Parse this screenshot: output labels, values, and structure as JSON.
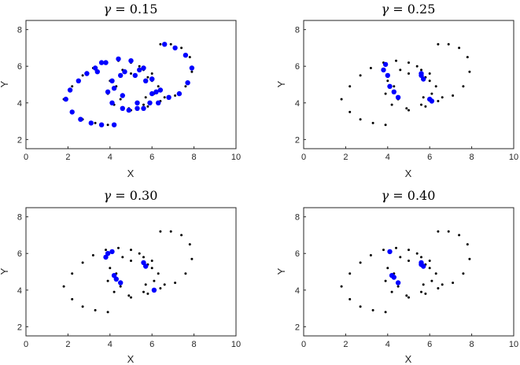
{
  "chart_data": [
    {
      "type": "scatter",
      "title": "γ = 0.15",
      "title_symbol": "γ",
      "title_value": "= 0.15",
      "xlabel": "X",
      "ylabel": "Y",
      "xlim": [
        0,
        10
      ],
      "ylim": [
        1.5,
        8.5
      ],
      "xticks": [
        "0",
        "2",
        "4",
        "6",
        "8",
        "10"
      ],
      "yticks": [
        "2",
        "4",
        "6",
        "8"
      ],
      "grid": false,
      "series": [
        {
          "role": "attractor",
          "color": "#000000",
          "points": [
            [
              1.8,
              4.2
            ],
            [
              2.2,
              4.9
            ],
            [
              2.7,
              5.5
            ],
            [
              3.2,
              5.9
            ],
            [
              3.8,
              6.2
            ],
            [
              4.4,
              6.3
            ],
            [
              5.0,
              6.2
            ],
            [
              5.6,
              5.8
            ],
            [
              6.0,
              5.2
            ],
            [
              6.1,
              4.5
            ],
            [
              5.6,
              3.9
            ],
            [
              4.9,
              3.7
            ],
            [
              4.2,
              3.9
            ],
            [
              3.9,
              4.5
            ],
            [
              4.0,
              5.2
            ],
            [
              4.6,
              5.8
            ],
            [
              5.4,
              6.0
            ],
            [
              6.0,
              5.6
            ],
            [
              6.3,
              4.9
            ],
            [
              6.6,
              4.3
            ],
            [
              7.1,
              4.4
            ],
            [
              7.6,
              4.9
            ],
            [
              7.9,
              5.7
            ],
            [
              7.8,
              6.5
            ],
            [
              7.4,
              7.0
            ],
            [
              6.9,
              7.2
            ],
            [
              6.4,
              7.2
            ],
            [
              2.2,
              3.5
            ],
            [
              2.7,
              3.1
            ],
            [
              3.3,
              2.9
            ],
            [
              3.9,
              2.8
            ],
            [
              5.0,
              3.6
            ],
            [
              5.8,
              3.8
            ],
            [
              6.4,
              4.1
            ],
            [
              5.7,
              4.3
            ],
            [
              4.5,
              4.2
            ],
            [
              4.3,
              4.9
            ],
            [
              5.0,
              5.6
            ],
            [
              5.8,
              5.4
            ]
          ]
        },
        {
          "role": "highlighted",
          "color": "#0000ff",
          "points": [
            [
              1.9,
              4.2
            ],
            [
              2.1,
              4.7
            ],
            [
              2.5,
              5.2
            ],
            [
              2.9,
              5.6
            ],
            [
              3.3,
              5.9
            ],
            [
              3.8,
              6.2
            ],
            [
              4.4,
              6.4
            ],
            [
              5.0,
              6.3
            ],
            [
              5.6,
              5.9
            ],
            [
              6.0,
              5.3
            ],
            [
              6.2,
              4.6
            ],
            [
              5.9,
              4.0
            ],
            [
              5.3,
              3.7
            ],
            [
              4.6,
              3.7
            ],
            [
              4.1,
              4.0
            ],
            [
              3.9,
              4.6
            ],
            [
              4.1,
              5.2
            ],
            [
              4.7,
              5.7
            ],
            [
              5.4,
              5.8
            ],
            [
              6.0,
              5.3
            ],
            [
              6.4,
              4.7
            ],
            [
              6.8,
              4.3
            ],
            [
              7.3,
              4.5
            ],
            [
              7.7,
              5.1
            ],
            [
              7.9,
              5.9
            ],
            [
              7.6,
              6.6
            ],
            [
              7.1,
              7.0
            ],
            [
              6.6,
              7.2
            ],
            [
              2.2,
              3.5
            ],
            [
              2.6,
              3.1
            ],
            [
              3.1,
              2.9
            ],
            [
              3.6,
              2.8
            ],
            [
              4.2,
              2.8
            ],
            [
              4.9,
              3.6
            ],
            [
              5.6,
              3.7
            ],
            [
              6.3,
              4.0
            ],
            [
              6.0,
              4.5
            ],
            [
              5.7,
              5.2
            ],
            [
              5.2,
              5.5
            ],
            [
              4.5,
              5.5
            ],
            [
              4.2,
              4.8
            ],
            [
              4.6,
              4.4
            ],
            [
              5.3,
              4.0
            ],
            [
              3.6,
              6.2
            ],
            [
              3.4,
              5.7
            ]
          ]
        }
      ]
    },
    {
      "type": "scatter",
      "title": "γ = 0.25",
      "title_symbol": "γ",
      "title_value": "= 0.25",
      "xlabel": "X",
      "ylabel": "Y",
      "xlim": [
        0,
        10
      ],
      "ylim": [
        1.5,
        8.5
      ],
      "xticks": [
        "0",
        "2",
        "4",
        "6",
        "8",
        "10"
      ],
      "yticks": [
        "2",
        "4",
        "6",
        "8"
      ],
      "grid": false,
      "series": [
        {
          "role": "attractor",
          "color": "#000000",
          "points": [
            [
              1.8,
              4.2
            ],
            [
              2.2,
              4.9
            ],
            [
              2.7,
              5.5
            ],
            [
              3.2,
              5.9
            ],
            [
              3.8,
              6.2
            ],
            [
              4.4,
              6.3
            ],
            [
              5.0,
              6.2
            ],
            [
              5.6,
              5.8
            ],
            [
              6.0,
              5.2
            ],
            [
              6.1,
              4.5
            ],
            [
              5.6,
              3.9
            ],
            [
              4.9,
              3.7
            ],
            [
              4.2,
              3.9
            ],
            [
              3.9,
              4.5
            ],
            [
              4.0,
              5.2
            ],
            [
              4.6,
              5.8
            ],
            [
              5.4,
              6.0
            ],
            [
              6.0,
              5.6
            ],
            [
              6.3,
              4.9
            ],
            [
              6.6,
              4.3
            ],
            [
              7.1,
              4.4
            ],
            [
              7.6,
              4.9
            ],
            [
              7.9,
              5.7
            ],
            [
              7.8,
              6.5
            ],
            [
              7.4,
              7.0
            ],
            [
              6.9,
              7.2
            ],
            [
              6.4,
              7.2
            ],
            [
              2.2,
              3.5
            ],
            [
              2.7,
              3.1
            ],
            [
              3.3,
              2.9
            ],
            [
              3.9,
              2.8
            ],
            [
              5.0,
              3.6
            ],
            [
              5.8,
              3.8
            ],
            [
              6.4,
              4.1
            ],
            [
              5.7,
              4.3
            ],
            [
              4.5,
              4.2
            ],
            [
              4.3,
              4.9
            ],
            [
              5.0,
              5.6
            ],
            [
              5.8,
              5.4
            ]
          ]
        },
        {
          "role": "highlighted",
          "color": "#0000ff",
          "points": [
            [
              3.9,
              6.1
            ],
            [
              3.8,
              5.8
            ],
            [
              4.0,
              5.5
            ],
            [
              4.1,
              4.9
            ],
            [
              4.3,
              4.6
            ],
            [
              4.5,
              4.3
            ],
            [
              5.6,
              5.5
            ],
            [
              5.7,
              5.3
            ],
            [
              5.6,
              5.6
            ],
            [
              6.1,
              4.1
            ],
            [
              6.0,
              4.2
            ]
          ]
        }
      ]
    },
    {
      "type": "scatter",
      "title": "γ = 0.30",
      "title_symbol": "γ",
      "title_value": "= 0.30",
      "xlabel": "X",
      "ylabel": "Y",
      "xlim": [
        0,
        10
      ],
      "ylim": [
        1.5,
        8.5
      ],
      "xticks": [
        "0",
        "2",
        "4",
        "6",
        "8",
        "10"
      ],
      "yticks": [
        "2",
        "4",
        "6",
        "8"
      ],
      "grid": false,
      "series": [
        {
          "role": "attractor",
          "color": "#000000",
          "points": [
            [
              1.8,
              4.2
            ],
            [
              2.2,
              4.9
            ],
            [
              2.7,
              5.5
            ],
            [
              3.2,
              5.9
            ],
            [
              3.8,
              6.2
            ],
            [
              4.4,
              6.3
            ],
            [
              5.0,
              6.2
            ],
            [
              5.6,
              5.8
            ],
            [
              6.0,
              5.2
            ],
            [
              6.1,
              4.5
            ],
            [
              5.6,
              3.9
            ],
            [
              4.9,
              3.7
            ],
            [
              4.2,
              3.9
            ],
            [
              3.9,
              4.5
            ],
            [
              4.0,
              5.2
            ],
            [
              4.6,
              5.8
            ],
            [
              5.4,
              6.0
            ],
            [
              6.0,
              5.6
            ],
            [
              6.3,
              4.9
            ],
            [
              6.6,
              4.3
            ],
            [
              7.1,
              4.4
            ],
            [
              7.6,
              4.9
            ],
            [
              7.9,
              5.7
            ],
            [
              7.8,
              6.5
            ],
            [
              7.4,
              7.0
            ],
            [
              6.9,
              7.2
            ],
            [
              6.4,
              7.2
            ],
            [
              2.2,
              3.5
            ],
            [
              2.7,
              3.1
            ],
            [
              3.3,
              2.9
            ],
            [
              3.9,
              2.8
            ],
            [
              5.0,
              3.6
            ],
            [
              5.8,
              3.8
            ],
            [
              6.4,
              4.1
            ],
            [
              5.7,
              4.3
            ],
            [
              4.5,
              4.2
            ],
            [
              4.3,
              4.9
            ],
            [
              5.0,
              5.6
            ],
            [
              5.8,
              5.4
            ]
          ]
        },
        {
          "role": "highlighted",
          "color": "#0000ff",
          "points": [
            [
              3.9,
              6.0
            ],
            [
              4.1,
              6.1
            ],
            [
              3.8,
              5.8
            ],
            [
              4.2,
              4.8
            ],
            [
              4.3,
              4.6
            ],
            [
              4.5,
              4.4
            ],
            [
              5.6,
              5.5
            ],
            [
              5.7,
              5.3
            ],
            [
              6.1,
              4.0
            ]
          ]
        }
      ]
    },
    {
      "type": "scatter",
      "title": "γ = 0.40",
      "title_symbol": "γ",
      "title_value": "= 0.40",
      "xlabel": "X",
      "ylabel": "Y",
      "xlim": [
        0,
        10
      ],
      "ylim": [
        1.5,
        8.5
      ],
      "xticks": [
        "0",
        "2",
        "4",
        "6",
        "8",
        "10"
      ],
      "yticks": [
        "2",
        "4",
        "6",
        "8"
      ],
      "grid": false,
      "series": [
        {
          "role": "attractor",
          "color": "#000000",
          "points": [
            [
              1.8,
              4.2
            ],
            [
              2.2,
              4.9
            ],
            [
              2.7,
              5.5
            ],
            [
              3.2,
              5.9
            ],
            [
              3.8,
              6.2
            ],
            [
              4.4,
              6.3
            ],
            [
              5.0,
              6.2
            ],
            [
              5.6,
              5.8
            ],
            [
              6.0,
              5.2
            ],
            [
              6.1,
              4.5
            ],
            [
              5.6,
              3.9
            ],
            [
              4.9,
              3.7
            ],
            [
              4.2,
              3.9
            ],
            [
              3.9,
              4.5
            ],
            [
              4.0,
              5.2
            ],
            [
              4.6,
              5.8
            ],
            [
              5.4,
              6.0
            ],
            [
              6.0,
              5.6
            ],
            [
              6.3,
              4.9
            ],
            [
              6.6,
              4.3
            ],
            [
              7.1,
              4.4
            ],
            [
              7.6,
              4.9
            ],
            [
              7.9,
              5.7
            ],
            [
              7.8,
              6.5
            ],
            [
              7.4,
              7.0
            ],
            [
              6.9,
              7.2
            ],
            [
              6.4,
              7.2
            ],
            [
              2.2,
              3.5
            ],
            [
              2.7,
              3.1
            ],
            [
              3.3,
              2.9
            ],
            [
              3.9,
              2.8
            ],
            [
              5.0,
              3.6
            ],
            [
              5.8,
              3.8
            ],
            [
              6.4,
              4.1
            ],
            [
              5.7,
              4.3
            ],
            [
              4.5,
              4.2
            ],
            [
              4.3,
              4.9
            ],
            [
              5.0,
              5.6
            ],
            [
              5.8,
              5.4
            ]
          ]
        },
        {
          "role": "highlighted",
          "color": "#0000ff",
          "points": [
            [
              4.1,
              6.1
            ],
            [
              4.2,
              4.8
            ],
            [
              4.3,
              4.7
            ],
            [
              4.5,
              4.4
            ],
            [
              5.6,
              5.5
            ],
            [
              5.7,
              5.3
            ],
            [
              5.6,
              5.4
            ]
          ]
        }
      ]
    }
  ]
}
